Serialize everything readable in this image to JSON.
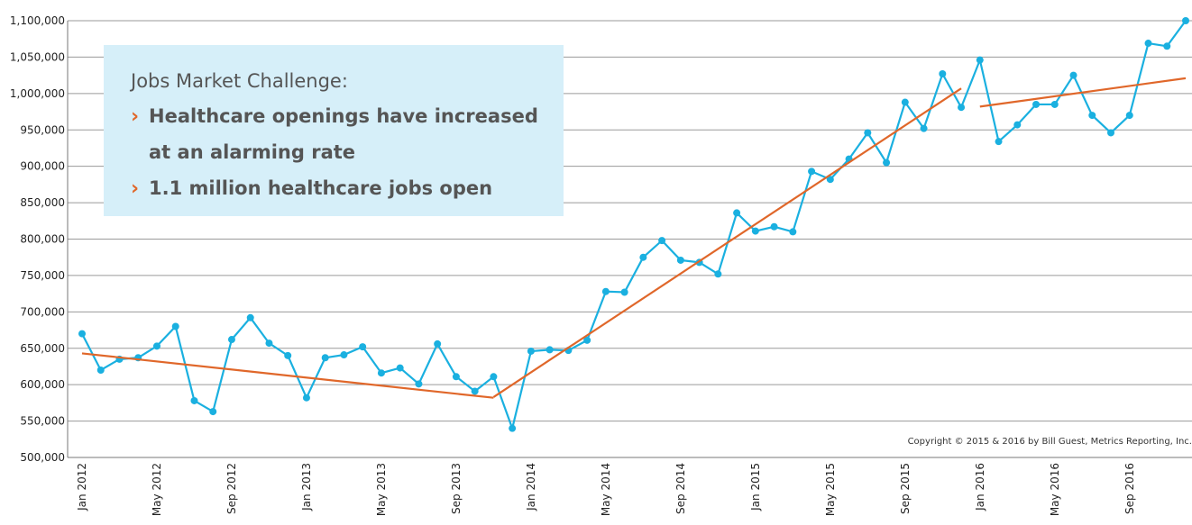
{
  "chart_data": {
    "type": "line",
    "categories": [
      "Jan 2012",
      null,
      null,
      null,
      "May 2012",
      null,
      null,
      null,
      "Sep 2012",
      null,
      null,
      null,
      "Jan 2013",
      null,
      null,
      null,
      "May 2013",
      null,
      null,
      null,
      "Sep 2013",
      null,
      null,
      null,
      "Jan 2014",
      null,
      null,
      null,
      "May 2014",
      null,
      null,
      null,
      "Sep 2014",
      null,
      null,
      null,
      "Jan 2015",
      null,
      null,
      null,
      "May 2015",
      null,
      null,
      null,
      "Sep 2015",
      null,
      null,
      null,
      "Jan 2016",
      null,
      null,
      null,
      "May 2016",
      null,
      null,
      null,
      "Sep 2016",
      null,
      null,
      null
    ],
    "series": [
      {
        "color": "#1ab0e0",
        "values": [
          670000,
          620000,
          635000,
          637000,
          653000,
          680000,
          578000,
          563000,
          662000,
          692000,
          657000,
          640000,
          582000,
          637000,
          641000,
          652000,
          616000,
          623000,
          601000,
          656000,
          611000,
          591000,
          611000,
          540000,
          646000,
          648000,
          647000,
          661000,
          728000,
          727000,
          775000,
          798000,
          771000,
          768000,
          752000,
          836000,
          811000,
          817000,
          810000,
          893000,
          882000,
          910000,
          946000,
          905000,
          988000,
          952000,
          1027000,
          981000,
          1046000,
          934000,
          957000,
          985000,
          985000,
          1025000,
          970000,
          946000,
          970000,
          1069000,
          1065000,
          1100000
        ]
      },
      {
        "color": "#e0672a",
        "trend": true,
        "values": [
          643000,
          null,
          null,
          null,
          null,
          null,
          null,
          null,
          null,
          null,
          null,
          null,
          null,
          null,
          null,
          null,
          null,
          null,
          null,
          null,
          null,
          null,
          582000,
          null,
          null,
          null,
          null,
          null,
          null,
          null,
          null,
          null,
          null,
          null,
          null,
          null,
          null,
          null,
          null,
          null,
          null,
          null,
          null,
          null,
          null,
          null,
          null,
          null,
          null,
          null,
          null,
          null,
          null,
          null,
          null,
          null,
          null,
          null,
          null,
          null
        ]
      },
      {
        "color": "#e0672a",
        "trend": true,
        "values": [
          null,
          null,
          null,
          null,
          null,
          null,
          null,
          null,
          null,
          null,
          null,
          null,
          null,
          null,
          null,
          null,
          null,
          null,
          null,
          null,
          null,
          null,
          583000,
          null,
          null,
          null,
          null,
          null,
          null,
          null,
          null,
          null,
          null,
          null,
          null,
          null,
          null,
          null,
          null,
          null,
          null,
          null,
          null,
          null,
          null,
          null,
          null,
          1007000,
          null,
          null,
          null,
          null,
          null,
          null,
          null,
          null,
          null,
          null,
          null,
          null
        ]
      },
      {
        "color": "#e0672a",
        "trend": true,
        "values": [
          null,
          null,
          null,
          null,
          null,
          null,
          null,
          null,
          null,
          null,
          null,
          null,
          null,
          null,
          null,
          null,
          null,
          null,
          null,
          null,
          null,
          null,
          null,
          null,
          null,
          null,
          null,
          null,
          null,
          null,
          null,
          null,
          null,
          null,
          null,
          null,
          null,
          null,
          null,
          null,
          null,
          null,
          null,
          null,
          null,
          null,
          null,
          null,
          982000,
          null,
          null,
          null,
          null,
          null,
          null,
          null,
          null,
          null,
          null,
          1021000
        ]
      }
    ],
    "ylim": [
      500000,
      1100000
    ],
    "yticks": [
      {
        "value": 500000,
        "label": "500,000"
      },
      {
        "value": 550000,
        "label": "550,000"
      },
      {
        "value": 600000,
        "label": "600,000"
      },
      {
        "value": 650000,
        "label": "650,000"
      },
      {
        "value": 700000,
        "label": "700,000"
      },
      {
        "value": 750000,
        "label": "750,000"
      },
      {
        "value": 800000,
        "label": "800,000"
      },
      {
        "value": 850000,
        "label": "850,000"
      },
      {
        "value": 900000,
        "label": "900,000"
      },
      {
        "value": 950000,
        "label": "950,000"
      },
      {
        "value": 1000000,
        "label": "1,000,000"
      },
      {
        "value": 1050000,
        "label": "1,050,000"
      },
      {
        "value": 1100000,
        "label": "1,100,000"
      }
    ],
    "grid": true,
    "annotation": {
      "title": "Jobs Market Challenge:",
      "bullets": [
        "Healthcare openings have increased",
        "at an alarming rate",
        "1.1 million healthcare jobs open"
      ],
      "bullet_marker": "›"
    },
    "copyright": "Copyright © 2015 & 2016 by Bill Guest, Metrics Reporting, Inc."
  }
}
